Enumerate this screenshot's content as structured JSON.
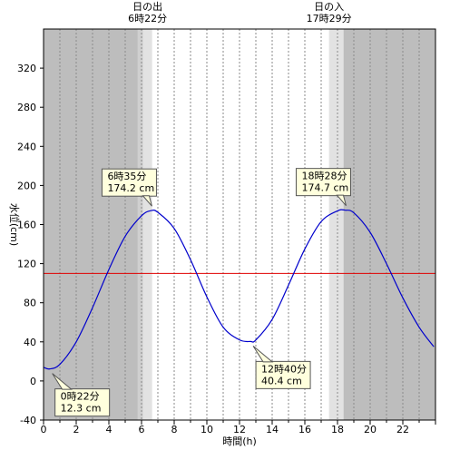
{
  "chart_data": {
    "type": "line",
    "xlabel": "時間(h)",
    "ylabel": "水位(cm)",
    "xlim": [
      0,
      24
    ],
    "ylim": [
      -40,
      360
    ],
    "x_ticks": [
      0,
      2,
      4,
      6,
      8,
      10,
      12,
      14,
      16,
      18,
      20,
      22
    ],
    "y_ticks": [
      -40,
      0,
      40,
      80,
      120,
      160,
      200,
      240,
      280,
      320
    ],
    "grid": "vertical dotted, every hour",
    "reference_line": {
      "y": 110,
      "color": "#e00000"
    },
    "series": [
      {
        "color": "#0000cc",
        "x": [
          0.0,
          0.37,
          1.0,
          2.0,
          3.0,
          4.0,
          5.0,
          6.0,
          6.58,
          7.0,
          8.0,
          9.0,
          10.0,
          11.0,
          12.0,
          12.67,
          13.0,
          14.0,
          15.0,
          16.0,
          17.0,
          18.0,
          18.47,
          19.0,
          20.0,
          21.0,
          22.0,
          23.0,
          23.9
        ],
        "y": [
          14.0,
          12.3,
          17.0,
          40.0,
          75.0,
          114.0,
          148.0,
          169.0,
          174.2,
          172.5,
          156.0,
          124.0,
          86.0,
          55.0,
          42.0,
          40.4,
          42.0,
          63.0,
          98.0,
          135.0,
          163.0,
          174.0,
          174.7,
          172.0,
          152.0,
          120.0,
          85.0,
          55.0,
          35.0
        ]
      }
    ],
    "sunrise": {
      "label": "日の出",
      "time": "6時22分",
      "hour": 6.37
    },
    "sunset": {
      "label": "日の入",
      "time": "17時29分",
      "hour": 17.48
    },
    "callouts": [
      {
        "time": "0時22分",
        "value": "12.3 cm",
        "x": 0.37,
        "y": 12.3,
        "side": "below"
      },
      {
        "time": "6時35分",
        "value": "174.2 cm",
        "x": 6.58,
        "y": 174.2,
        "side": "above"
      },
      {
        "time": "12時40分",
        "value": "40.4 cm",
        "x": 12.67,
        "y": 40.4,
        "side": "below"
      },
      {
        "time": "18時28分",
        "value": "174.7 cm",
        "x": 18.47,
        "y": 174.7,
        "side": "above"
      }
    ]
  }
}
